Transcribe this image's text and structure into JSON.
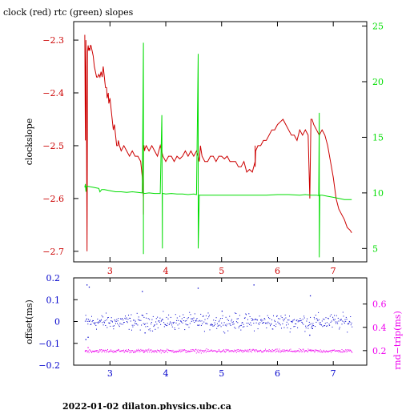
{
  "title": "clock (red) rtc (green) slopes",
  "footer": "2022-01-02  dilaton.physics.ubc.ca",
  "colors": {
    "clock": "#cc0000",
    "rtc": "#00dd00",
    "offset": "#0000cc",
    "rndtrip": "#ee00ee",
    "frame": "#000000"
  },
  "chart_data": [
    {
      "type": "line",
      "title": "clock (red) rtc (green) slopes",
      "xlabel": "",
      "ylabel": "clockslope",
      "y2label": "",
      "xlim": [
        2.35,
        7.6
      ],
      "ylim": [
        -2.72,
        -2.265
      ],
      "y2lim": [
        3.8,
        25.4
      ],
      "xticks": [
        3,
        4,
        5,
        6,
        7
      ],
      "xtick_labels": [
        "3",
        "4",
        "5",
        "6",
        "7"
      ],
      "yticks": [
        -2.3,
        -2.4,
        -2.5,
        -2.6,
        -2.7
      ],
      "ytick_labels": [
        "−2.3",
        "−2.4",
        "−2.5",
        "−2.6",
        "−2.7"
      ],
      "y2ticks": [
        5,
        10,
        15,
        20,
        25
      ],
      "y2tick_labels": [
        "5",
        "10",
        "15",
        "20",
        "25"
      ],
      "series": [
        {
          "name": "clock",
          "axis": "left",
          "x": [
            2.55,
            2.56,
            2.57,
            2.58,
            2.59,
            2.6,
            2.61,
            2.62,
            2.63,
            2.64,
            2.65,
            2.66,
            2.68,
            2.7,
            2.72,
            2.74,
            2.76,
            2.78,
            2.8,
            2.82,
            2.84,
            2.86,
            2.88,
            2.9,
            2.92,
            2.94,
            2.95,
            2.97,
            2.98,
            3.0,
            3.02,
            3.04,
            3.06,
            3.08,
            3.1,
            3.12,
            3.14,
            3.15,
            3.17,
            3.2,
            3.25,
            3.3,
            3.35,
            3.4,
            3.45,
            3.5,
            3.55,
            3.58,
            3.6,
            3.6,
            3.6,
            3.61,
            3.62,
            3.63,
            3.65,
            3.7,
            3.75,
            3.8,
            3.85,
            3.9,
            3.95,
            4.0,
            4.05,
            4.1,
            4.15,
            4.2,
            4.25,
            4.3,
            4.35,
            4.4,
            4.45,
            4.5,
            4.55,
            4.58,
            4.6,
            4.62,
            4.65,
            4.7,
            4.75,
            4.8,
            4.85,
            4.9,
            4.95,
            5.0,
            5.05,
            5.1,
            5.15,
            5.2,
            5.25,
            5.3,
            5.35,
            5.4,
            5.45,
            5.5,
            5.55,
            5.6,
            5.6,
            5.6,
            5.61,
            5.65,
            5.7,
            5.75,
            5.8,
            5.85,
            5.9,
            5.95,
            6.0,
            6.05,
            6.1,
            6.15,
            6.2,
            6.25,
            6.3,
            6.35,
            6.4,
            6.45,
            6.5,
            6.55,
            6.58,
            6.6,
            6.62,
            6.65,
            6.7,
            6.75,
            6.8,
            6.85,
            6.9,
            6.95,
            7.0,
            7.05,
            7.1,
            7.15,
            7.2,
            7.25,
            7.3,
            7.33
          ],
          "y": [
            -2.29,
            -2.49,
            -2.3,
            -2.45,
            -2.7,
            -2.32,
            -2.31,
            -2.32,
            -2.315,
            -2.32,
            -2.31,
            -2.31,
            -2.32,
            -2.33,
            -2.35,
            -2.36,
            -2.37,
            -2.37,
            -2.365,
            -2.37,
            -2.36,
            -2.37,
            -2.35,
            -2.37,
            -2.39,
            -2.39,
            -2.41,
            -2.4,
            -2.42,
            -2.41,
            -2.43,
            -2.45,
            -2.47,
            -2.46,
            -2.48,
            -2.5,
            -2.5,
            -2.49,
            -2.5,
            -2.51,
            -2.5,
            -2.51,
            -2.52,
            -2.51,
            -2.52,
            -2.52,
            -2.53,
            -2.56,
            -2.6,
            -2.63,
            -2.5,
            -2.5,
            -2.51,
            -2.505,
            -2.5,
            -2.51,
            -2.5,
            -2.51,
            -2.52,
            -2.5,
            -2.52,
            -2.53,
            -2.52,
            -2.52,
            -2.53,
            -2.52,
            -2.525,
            -2.52,
            -2.51,
            -2.52,
            -2.51,
            -2.52,
            -2.51,
            -2.52,
            -2.53,
            -2.5,
            -2.52,
            -2.53,
            -2.53,
            -2.52,
            -2.52,
            -2.53,
            -2.52,
            -2.52,
            -2.525,
            -2.52,
            -2.53,
            -2.53,
            -2.53,
            -2.54,
            -2.54,
            -2.53,
            -2.55,
            -2.545,
            -2.55,
            -2.53,
            -2.5,
            -2.54,
            -2.51,
            -2.5,
            -2.5,
            -2.49,
            -2.49,
            -2.48,
            -2.47,
            -2.47,
            -2.46,
            -2.455,
            -2.45,
            -2.46,
            -2.47,
            -2.48,
            -2.48,
            -2.49,
            -2.47,
            -2.48,
            -2.47,
            -2.48,
            -2.6,
            -2.45,
            -2.45,
            -2.46,
            -2.47,
            -2.48,
            -2.47,
            -2.48,
            -2.5,
            -2.53,
            -2.56,
            -2.6,
            -2.62,
            -2.63,
            -2.64,
            -2.655,
            -2.66,
            -2.665
          ]
        },
        {
          "name": "rtc",
          "axis": "right",
          "x": [
            2.55,
            2.56,
            2.57,
            2.58,
            2.6,
            2.65,
            2.7,
            2.75,
            2.8,
            2.82,
            2.85,
            2.9,
            3.0,
            3.1,
            3.2,
            3.3,
            3.4,
            3.5,
            3.58,
            3.6,
            3.6,
            3.6,
            3.62,
            3.7,
            3.8,
            3.9,
            3.93,
            3.94,
            3.94,
            3.95,
            4.0,
            4.1,
            4.2,
            4.3,
            4.4,
            4.5,
            4.55,
            4.58,
            4.58,
            4.58,
            4.6,
            4.6,
            4.61,
            4.7,
            4.8,
            4.9,
            5.0,
            5.2,
            5.4,
            5.6,
            5.8,
            6.0,
            6.2,
            6.4,
            6.5,
            6.6,
            6.7,
            6.74,
            6.75,
            6.75,
            6.76,
            6.8,
            6.9,
            7.0,
            7.1,
            7.2,
            7.3,
            7.33
          ],
          "y": [
            10.5,
            10.8,
            10.1,
            10.6,
            10.6,
            10.55,
            10.5,
            10.45,
            10.4,
            10.1,
            10.3,
            10.3,
            10.2,
            10.1,
            10.1,
            10.05,
            10.1,
            10.05,
            10.0,
            23.5,
            4.5,
            10.0,
            9.95,
            10.0,
            9.95,
            9.95,
            17.0,
            5.0,
            9.9,
            9.95,
            9.9,
            9.95,
            9.9,
            9.9,
            9.85,
            9.9,
            9.85,
            22.5,
            20.5,
            5.0,
            9.85,
            9.8,
            9.8,
            9.8,
            9.8,
            9.8,
            9.8,
            9.8,
            9.8,
            9.8,
            9.8,
            9.85,
            9.85,
            9.8,
            9.85,
            9.8,
            9.8,
            9.75,
            17.2,
            4.2,
            9.8,
            9.8,
            9.7,
            9.6,
            9.5,
            9.4,
            9.4,
            9.4
          ]
        }
      ]
    },
    {
      "type": "scatter",
      "xlabel": "",
      "ylabel": "offset(ms)",
      "y2label": "rnd−trip(ms)",
      "xlim": [
        2.35,
        7.6
      ],
      "ylim": [
        -0.2,
        0.2
      ],
      "y2lim": [
        0.075,
        0.825
      ],
      "xticks": [
        3,
        4,
        5,
        6,
        7
      ],
      "xtick_labels": [
        "3",
        "4",
        "5",
        "6",
        "7"
      ],
      "yticks": [
        0.2,
        0.1,
        0,
        -0.1,
        -0.2
      ],
      "ytick_labels": [
        "0.2",
        "0.1",
        "0",
        "−0.1",
        "−0.2"
      ],
      "y2ticks": [
        0.6,
        0.4,
        0.2
      ],
      "y2tick_labels": [
        "0.6",
        "0.4",
        "0.2"
      ],
      "series": [
        {
          "name": "offset",
          "axis": "left",
          "x_range": [
            2.55,
            7.33
          ],
          "level": 0.0,
          "spread": 0.03,
          "count": 500,
          "outliers": [
            [
              2.58,
              0.17
            ],
            [
              2.62,
              0.16
            ],
            [
              2.56,
              -0.08
            ],
            [
              3.57,
              0.14
            ],
            [
              4.57,
              0.155
            ],
            [
              5.57,
              0.17
            ],
            [
              6.58,
              0.12
            ],
            [
              6.57,
              -0.06
            ],
            [
              2.6,
              -0.07
            ],
            [
              3.62,
              -0.05
            ],
            [
              5.0,
              0.05
            ],
            [
              6.62,
              -0.03
            ]
          ]
        },
        {
          "name": "rndtrip",
          "axis": "right",
          "x_range": [
            2.55,
            7.33
          ],
          "level": 0.2,
          "spread": 0.012,
          "count": 500,
          "outliers": [
            [
              2.55,
              0.2
            ],
            [
              2.6,
              0.23
            ],
            [
              3.6,
              0.19
            ],
            [
              6.58,
              0.21
            ]
          ]
        }
      ]
    }
  ]
}
